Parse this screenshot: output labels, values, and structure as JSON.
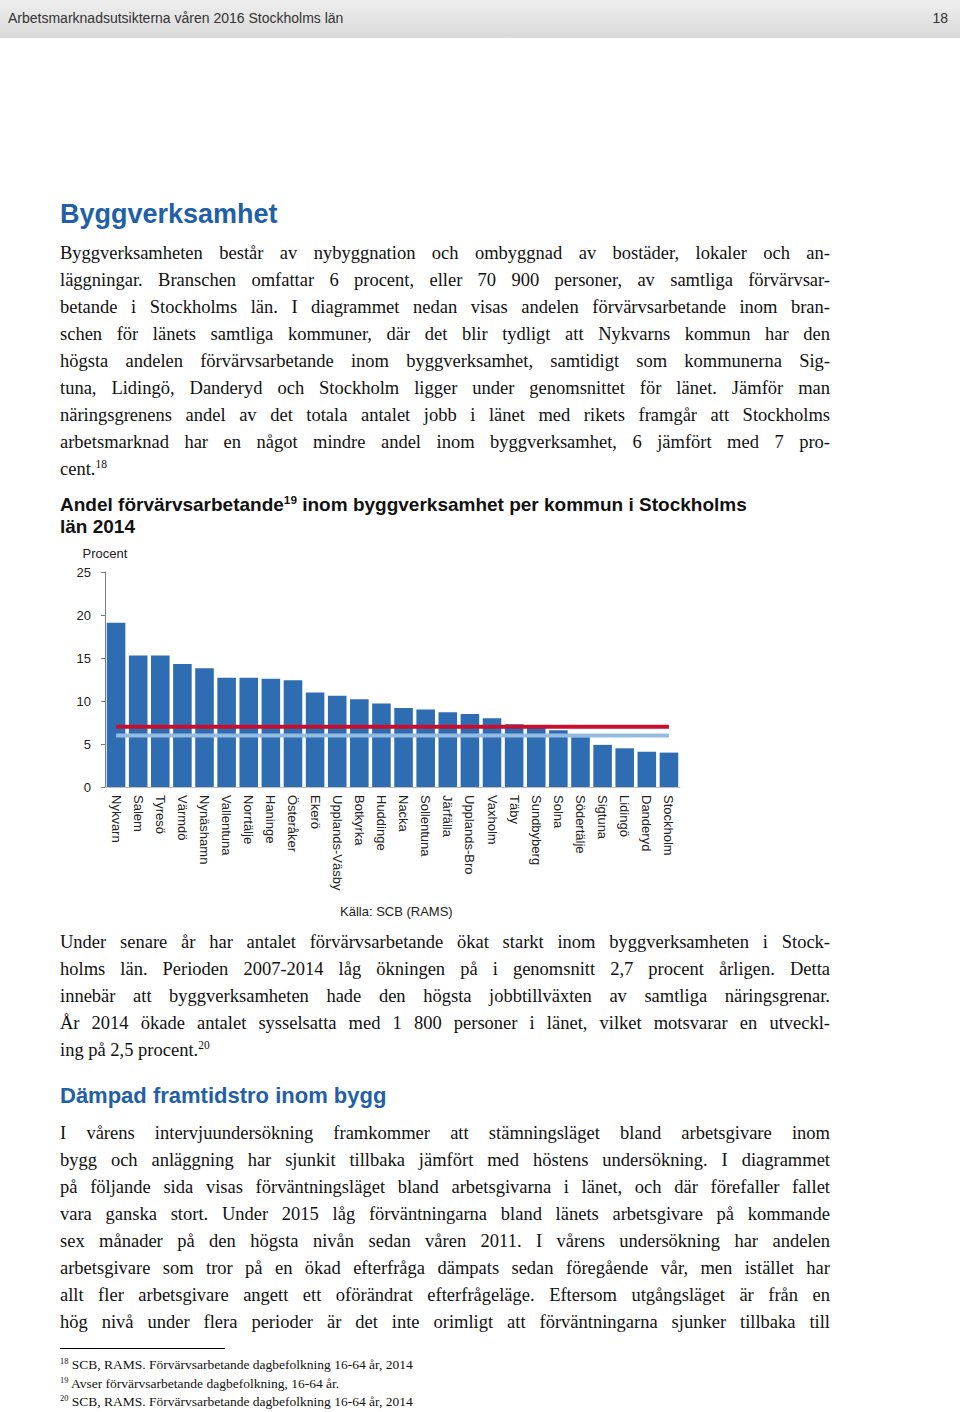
{
  "header": {
    "title": "Arbetsmarknadsutsikterna våren 2016 Stockholms län",
    "page": "18"
  },
  "heading": "Byggverksamhet",
  "paragraph_1": [
    "Byggverksamheten består av nybyggnation och ombyggnad av bostäder, lokaler och an-",
    "läggningar. Branschen omfattar 6 procent, eller 70 900 personer, av samtliga förvärvsar-",
    "betande i Stockholms län. I diagrammet nedan visas andelen förvärvsarbetande inom bran-",
    "schen för länets samtliga kommuner, där det blir tydligt att Nykvarns kommun har den",
    "högsta andelen förvärvsarbetande inom byggverksamhet, samtidigt som kommunerna Sig-",
    "tuna, Lidingö, Danderyd och Stockholm ligger under genomsnittet för länet. Jämför man",
    "näringsgrenens andel av det totala antalet jobb i länet med rikets framgår att Stockholms",
    "arbetsmarknad har en något mindre andel inom byggverksamhet, 6 jämfört med 7 pro-",
    [
      "cent.",
      {
        "sup": "18"
      }
    ]
  ],
  "chart_title": [
    [
      "Andel förvärvsarbetande",
      {
        "sup": "19"
      },
      " inom byggverksamhet per kommun i Stockholms"
    ],
    "län 2014"
  ],
  "chart_data": {
    "type": "bar",
    "y_label": "Procent",
    "source": "Källa: SCB (RAMS)",
    "categories": [
      "Nykvarn",
      "Salem",
      "Tyresö",
      "Värmdö",
      "Nynäshamn",
      "Vallentuna",
      "Norrtälje",
      "Haninge",
      "Österåker",
      "Ekerö",
      "Upplands-Väsby",
      "Botkyrka",
      "Huddinge",
      "Nacka",
      "Sollentuna",
      "Järfälla",
      "Upplands-Bro",
      "Vaxholm",
      "Täby",
      "Sundbyberg",
      "Solna",
      "Södertälje",
      "Sigtuna",
      "Lidingö",
      "Danderyd",
      "Stockholm"
    ],
    "series": [
      {
        "type": "bar",
        "color": "#2f6db3",
        "values": [
          19.1,
          15.3,
          15.3,
          14.3,
          13.8,
          12.7,
          12.7,
          12.6,
          12.4,
          11.0,
          10.6,
          10.2,
          9.7,
          9.2,
          9.0,
          8.7,
          8.5,
          8.0,
          7.3,
          7.1,
          6.6,
          5.8,
          4.9,
          4.5,
          4.1,
          4.0
        ]
      },
      {
        "type": "line",
        "color": "#c8102e",
        "values": [
          7,
          7,
          7,
          7,
          7,
          7,
          7,
          7,
          7,
          7,
          7,
          7,
          7,
          7,
          7,
          7,
          7,
          7,
          7,
          7,
          7,
          7,
          7,
          7,
          7,
          7
        ]
      },
      {
        "type": "line",
        "color": "#95bbe0",
        "values": [
          6,
          6,
          6,
          6,
          6,
          6,
          6,
          6,
          6,
          6,
          6,
          6,
          6,
          6,
          6,
          6,
          6,
          6,
          6,
          6,
          6,
          6,
          6,
          6,
          6,
          6
        ]
      }
    ],
    "ylim": [
      0,
      25
    ],
    "yticks": [
      0,
      5,
      10,
      15,
      20,
      25
    ],
    "grid": false
  },
  "paragraph_2": [
    "Under senare år har antalet förvärvsarbetande ökat starkt inom byggverksamheten i Stock-",
    "holms län. Perioden 2007-2014 låg ökningen på i genomsnitt 2,7 procent årligen. Detta",
    "innebär att byggverksamheten hade den högsta jobbtillväxten av samtliga näringsgrenar.",
    "År 2014 ökade antalet sysselsatta med 1 800 personer i länet, vilket motsvarar en utveckl-",
    [
      "ing på 2,5 procent.",
      {
        "sup": "20"
      }
    ]
  ],
  "heading_2": "Dämpad framtidstro inom bygg",
  "paragraph_3": [
    "I vårens intervjuundersökning framkommer att stämningsläget bland arbetsgivare inom",
    "bygg och anläggning har sjunkit tillbaka jämfört med höstens undersökning. I diagrammet",
    "på följande sida visas förväntningsläget bland arbetsgivarna i länet, och där förefaller fallet",
    "vara ganska stort. Under 2015 låg förväntningarna bland länets arbetsgivare på kommande",
    "sex månader på den högsta nivån sedan våren 2011. I vårens undersökning har andelen",
    "arbetsgivare som tror på en ökad efterfråga dämpats sedan föregående vår, men istället har",
    "allt fler arbetsgivare angett ett oförändrat efterfrågeläge. Eftersom utgångsläget är från en",
    "hög nivå under flera perioder är det inte orimligt att förväntningarna sjunker tillbaka till"
  ],
  "footnotes": [
    [
      {
        "sup": "18"
      },
      " SCB, RAMS. Förvärvsarbetande dagbefolkning 16-64 år, 2014"
    ],
    [
      {
        "sup": "19"
      },
      " Avser förvärvsarbetande dagbefolkning, 16-64 år."
    ],
    [
      {
        "sup": "20"
      },
      " SCB, RAMS. Förvärvsarbetande dagbefolkning 16-64 år, 2014"
    ]
  ]
}
